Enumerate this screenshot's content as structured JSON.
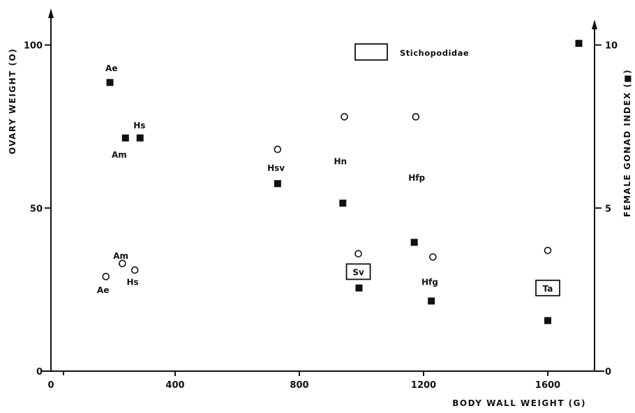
{
  "chart_data": {
    "type": "scatter",
    "xlabel": "BODY  WALL  WEIGHT (G)",
    "ylabel_left": "OVARY  WEIGHT (O)",
    "ylabel_right": "FEMALE  GONAD  INDEX (■)",
    "xlim": [
      0,
      1700
    ],
    "ylim_left": [
      0,
      105
    ],
    "ylim_right": [
      0,
      10.5
    ],
    "x_ticks": [
      "0",
      "400",
      "800",
      "1200",
      "1600"
    ],
    "x_tick_values": [
      0,
      400,
      800,
      1200,
      1600
    ],
    "y_left_ticks": [
      "0",
      "50",
      "100"
    ],
    "y_left_tick_values": [
      0,
      50,
      100
    ],
    "y_right_ticks": [
      "0",
      "5",
      "10"
    ],
    "y_right_tick_values": [
      0,
      5,
      10
    ],
    "legend": {
      "label": "Stichopodidae",
      "symbol": "box",
      "position": "top-center"
    },
    "series": [
      {
        "marker": "open-circle",
        "axis": "left",
        "points": [
          {
            "x": 177,
            "y": 29
          },
          {
            "x": 230,
            "y": 33
          },
          {
            "x": 270,
            "y": 31
          },
          {
            "x": 730,
            "y": 68
          },
          {
            "x": 945,
            "y": 78
          },
          {
            "x": 990,
            "y": 36
          },
          {
            "x": 1175,
            "y": 78
          },
          {
            "x": 1230,
            "y": 35
          },
          {
            "x": 1600,
            "y": 37
          }
        ]
      },
      {
        "marker": "filled-square",
        "axis": "right",
        "points": [
          {
            "x": 190,
            "y": 8.85
          },
          {
            "x": 240,
            "y": 7.15
          },
          {
            "x": 287,
            "y": 7.15
          },
          {
            "x": 730,
            "y": 5.75
          },
          {
            "x": 940,
            "y": 5.15
          },
          {
            "x": 992,
            "y": 2.55
          },
          {
            "x": 1170,
            "y": 3.95
          },
          {
            "x": 1225,
            "y": 2.15
          },
          {
            "x": 1600,
            "y": 1.55
          },
          {
            "x": 1700,
            "y": 10.05
          }
        ]
      }
    ],
    "annotations": [
      {
        "text": "Ae",
        "x": 195,
        "y_right": 9.3,
        "boxed": false
      },
      {
        "text": "Hs",
        "x": 285,
        "y_right": 7.55,
        "boxed": false
      },
      {
        "text": "Am",
        "x": 220,
        "y_right": 6.65,
        "boxed": false
      },
      {
        "text": "Hsv",
        "x": 725,
        "y_right": 6.25,
        "boxed": false
      },
      {
        "text": "Hn",
        "x": 932,
        "y_right": 6.45,
        "boxed": false
      },
      {
        "text": "Hfp",
        "x": 1178,
        "y_right": 5.95,
        "boxed": false
      },
      {
        "text": "Am",
        "x": 225,
        "y_right": 3.55,
        "boxed": false
      },
      {
        "text": "Hs",
        "x": 263,
        "y_right": 2.75,
        "boxed": false
      },
      {
        "text": "Ae",
        "x": 168,
        "y_right": 2.5,
        "boxed": false
      },
      {
        "text": "Sv",
        "x": 990,
        "y_right": 3.05,
        "boxed": true
      },
      {
        "text": "Hfg",
        "x": 1220,
        "y_right": 2.75,
        "boxed": false
      },
      {
        "text": "Ta",
        "x": 1600,
        "y_right": 2.55,
        "boxed": true
      }
    ]
  }
}
